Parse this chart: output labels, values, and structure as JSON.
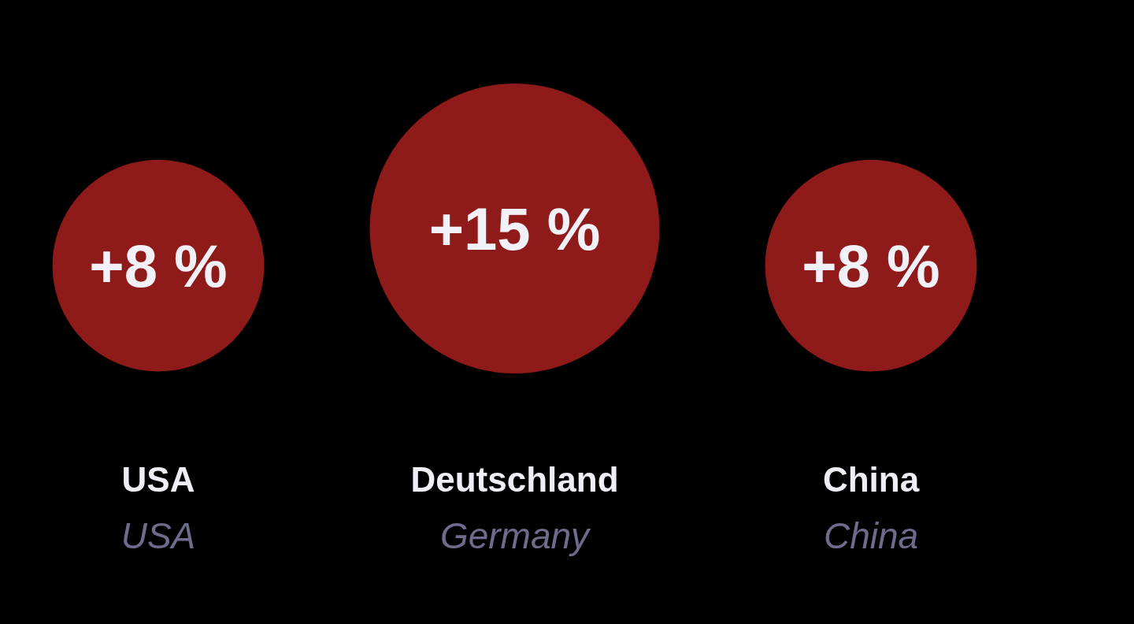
{
  "chart_data": {
    "type": "other",
    "categories": [
      "USA\nUSA",
      "Deutschland\nGermany",
      "China\nChina"
    ],
    "values": [
      8,
      15,
      8
    ],
    "value_labels": [
      "+8 %",
      "+15 %",
      "+8 %"
    ],
    "color": "#8e1a1a"
  }
}
